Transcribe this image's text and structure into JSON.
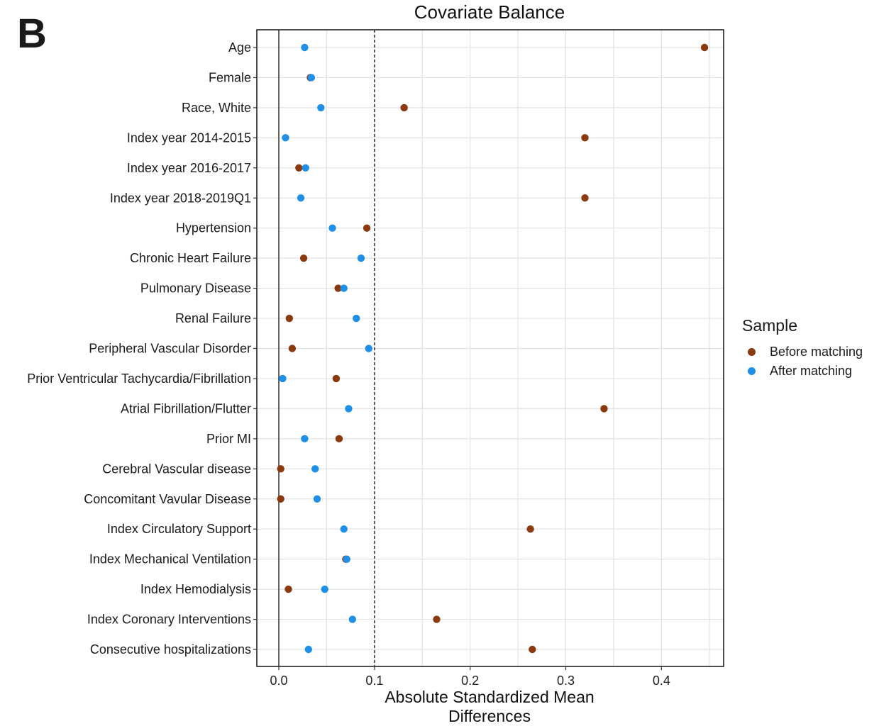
{
  "panel_letter": "B",
  "chart_data": {
    "type": "scatter",
    "title": "Covariate Balance",
    "xlabel": "Absolute Standardized Mean Differences",
    "xlabel_lines": [
      "Absolute Standardized Mean",
      "Differences"
    ],
    "ylabel": "",
    "xlim": [
      -0.023,
      0.465
    ],
    "xticks": [
      0.0,
      0.1,
      0.2,
      0.3,
      0.4
    ],
    "xtick_labels": [
      "0.0",
      "0.1",
      "0.2",
      "0.3",
      "0.4"
    ],
    "threshold_line": 0.1,
    "zero_line": 0.0,
    "grid": true,
    "legend_title": "Sample",
    "legend_position": "right",
    "categories": [
      "Age",
      "Female",
      "Race, White",
      "Index year 2014-2015",
      "Index year 2016-2017",
      "Index year 2018-2019Q1",
      "Hypertension",
      "Chronic Heart Failure",
      "Pulmonary Disease",
      "Renal Failure",
      "Peripheral Vascular Disorder",
      "Prior Ventricular Tachycardia/Fibrillation",
      "Atrial Fibrillation/Flutter",
      "Prior MI",
      "Cerebral Vascular disease",
      "Concomitant Vavular Disease",
      "Index Circulatory Support",
      "Index Mechanical Ventilation",
      "Index Hemodialysis",
      "Index Coronary Interventions",
      "Consecutive hospitalizations"
    ],
    "series": [
      {
        "name": "Before matching",
        "color": "#8b3a0f",
        "values": [
          0.445,
          0.033,
          0.131,
          0.32,
          0.021,
          0.32,
          0.092,
          0.026,
          0.062,
          0.011,
          0.014,
          0.06,
          0.34,
          0.063,
          0.002,
          0.002,
          0.263,
          0.07,
          0.01,
          0.165,
          0.265
        ]
      },
      {
        "name": "After matching",
        "color": "#1f8fe8",
        "values": [
          0.027,
          0.034,
          0.044,
          0.007,
          0.028,
          0.023,
          0.056,
          0.086,
          0.068,
          0.081,
          0.094,
          0.004,
          0.073,
          0.027,
          0.038,
          0.04,
          0.068,
          0.071,
          0.048,
          0.077,
          0.031
        ]
      }
    ]
  }
}
